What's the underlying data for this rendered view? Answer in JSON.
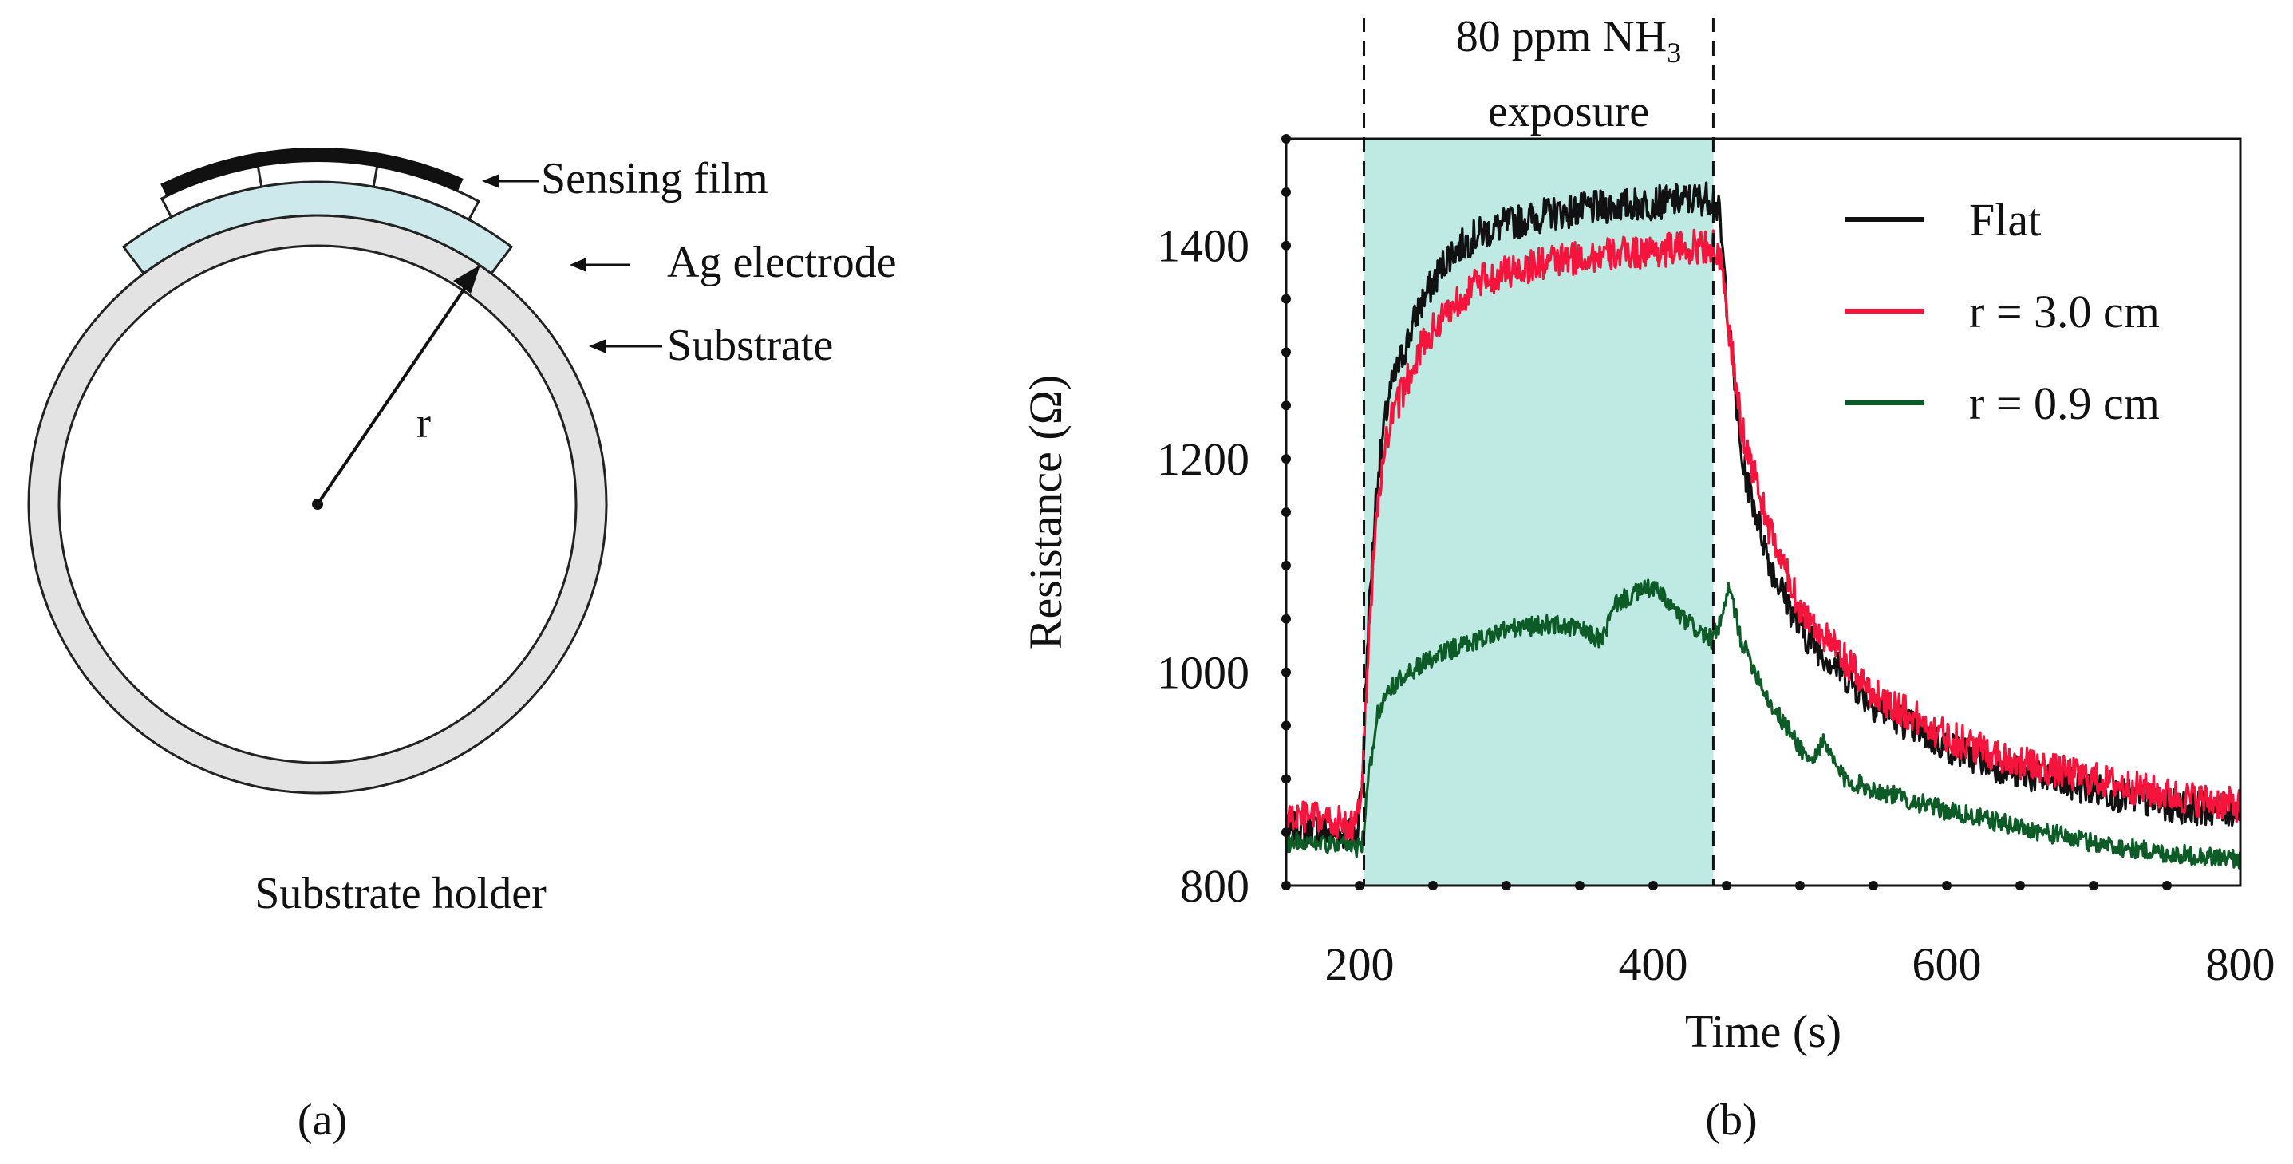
{
  "panel_a": {
    "labels": {
      "sensing_film": "Sensing film",
      "ag_electrode": "Ag electrode",
      "substrate": "Substrate",
      "radius": "r",
      "holder": "Substrate holder"
    },
    "caption": "(a)",
    "colors": {
      "film": "#111111",
      "substrate": "#cde9ec",
      "holder": "#e3e3e3"
    }
  },
  "panel_b": {
    "caption": "(b)"
  },
  "chart_data": {
    "type": "line",
    "xlabel": "Time (s)",
    "ylabel": "Resistance (Ω)",
    "xlim": [
      150,
      800
    ],
    "ylim": [
      800,
      1500
    ],
    "xticks": [
      200,
      400,
      600,
      800
    ],
    "yticks": [
      800,
      1000,
      1200,
      1400
    ],
    "legend_position": "top-right",
    "exposure": {
      "start": 203,
      "end": 441,
      "label_prefix": "80 ppm NH",
      "label_subscript": "3",
      "label_line2": "exposure",
      "color": "#bfe9e3"
    },
    "series": [
      {
        "name": "Flat",
        "color": "#111111",
        "x": [
          150,
          160,
          180,
          198,
          202,
          206,
          212,
          220,
          240,
          260,
          280,
          300,
          330,
          360,
          400,
          440,
          445,
          450,
          460,
          480,
          500,
          550,
          600,
          650,
          700,
          750,
          800
        ],
        "values": [
          850,
          855,
          850,
          848,
          900,
          1050,
          1180,
          1260,
          1340,
          1390,
          1410,
          1420,
          1430,
          1435,
          1440,
          1445,
          1430,
          1350,
          1200,
          1100,
          1040,
          970,
          930,
          905,
          890,
          875,
          870
        ]
      },
      {
        "name": "r = 3.0 cm",
        "color": "#f5143c",
        "x": [
          150,
          160,
          180,
          198,
          202,
          206,
          212,
          220,
          240,
          260,
          280,
          300,
          330,
          360,
          400,
          440,
          445,
          450,
          460,
          480,
          500,
          550,
          600,
          650,
          700,
          750,
          800
        ],
        "values": [
          860,
          865,
          860,
          855,
          900,
          1030,
          1150,
          1230,
          1300,
          1340,
          1365,
          1375,
          1385,
          1390,
          1395,
          1400,
          1390,
          1340,
          1230,
          1130,
          1060,
          980,
          940,
          915,
          900,
          885,
          875
        ]
      },
      {
        "name": "r = 0.9 cm",
        "color": "#0d5b26",
        "x": [
          150,
          160,
          180,
          198,
          202,
          206,
          212,
          220,
          240,
          260,
          280,
          300,
          330,
          350,
          365,
          375,
          390,
          400,
          420,
          430,
          440,
          447,
          452,
          460,
          480,
          500,
          508,
          515,
          530,
          550,
          600,
          650,
          700,
          750,
          800
        ],
        "values": [
          840,
          842,
          838,
          835,
          840,
          900,
          960,
          985,
          1005,
          1020,
          1030,
          1040,
          1045,
          1040,
          1030,
          1065,
          1075,
          1080,
          1050,
          1040,
          1030,
          1050,
          1080,
          1030,
          970,
          930,
          915,
          935,
          900,
          890,
          870,
          855,
          840,
          830,
          825
        ]
      }
    ]
  }
}
